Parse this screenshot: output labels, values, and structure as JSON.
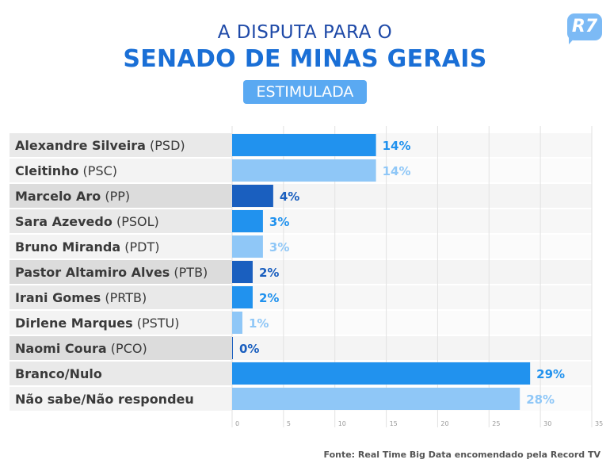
{
  "header": {
    "title_line1": "A DISPUTA PARA O",
    "title_line2": "SENADO DE MINAS GERAIS",
    "badge": "ESTIMULADA",
    "logo": "R7"
  },
  "source": "Fonte: Real Time Big Data encomendado pela Record TV",
  "colors": {
    "title_dark": "#1f4aa8",
    "title_accent": "#1a6fd6",
    "badge_bg": "#5aa9f2",
    "bar_mid": "#2192ee",
    "bar_light": "#8fc7f7",
    "bar_dark": "#1a5fbf"
  },
  "chart_data": {
    "type": "bar",
    "orientation": "horizontal",
    "title": "A DISPUTA PARA O SENADO DE MINAS GERAIS",
    "subtitle": "ESTIMULADA",
    "xlabel": "",
    "ylabel": "",
    "xlim": [
      0,
      35
    ],
    "xticks": [
      0,
      5,
      10,
      15,
      20,
      25,
      30,
      35
    ],
    "grid": true,
    "categories": [
      {
        "name": "Alexandre Silveira",
        "party": "(PSD)"
      },
      {
        "name": "Cleitinho",
        "party": "(PSC)"
      },
      {
        "name": "Marcelo Aro",
        "party": "(PP)"
      },
      {
        "name": "Sara Azevedo",
        "party": "(PSOL)"
      },
      {
        "name": "Bruno Miranda",
        "party": "(PDT)"
      },
      {
        "name": "Pastor Altamiro Alves",
        "party": "(PTB)"
      },
      {
        "name": "Irani Gomes",
        "party": "(PRTB)"
      },
      {
        "name": "Dirlene Marques",
        "party": "(PSTU)"
      },
      {
        "name": "Naomi Coura",
        "party": "(PCO)"
      },
      {
        "name": "Branco/Nulo",
        "party": ""
      },
      {
        "name": "Não sabe/Não respondeu",
        "party": ""
      }
    ],
    "values": [
      14,
      14,
      4,
      3,
      3,
      2,
      2,
      1,
      0,
      29,
      28
    ],
    "value_labels": [
      "14%",
      "14%",
      "4%",
      "3%",
      "3%",
      "2%",
      "2%",
      "1%",
      "0%",
      "29%",
      "28%"
    ],
    "bar_colors": [
      "mid",
      "light",
      "dark",
      "mid",
      "light",
      "dark",
      "mid",
      "light",
      "dark",
      "mid",
      "light"
    ]
  }
}
